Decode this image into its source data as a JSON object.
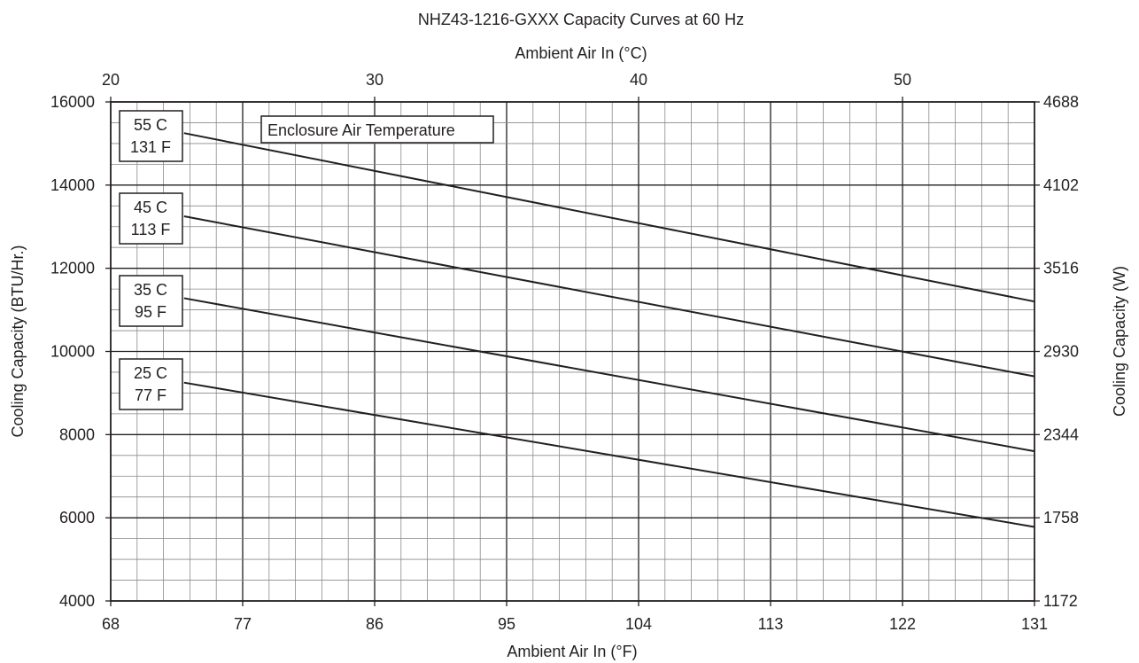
{
  "chart_data": {
    "type": "line",
    "title": "NHZ43-1216-GXXX Capacity Curves at 60 Hz",
    "xlabel": "Ambient Air In (°F)",
    "x2label": "Ambient Air In (°C)",
    "ylabel": "Cooling Capacity (BTU/Hr.)",
    "y2label": "Cooling Capacity (W)",
    "xlim": [
      68,
      131
    ],
    "ylim": [
      4000,
      16000
    ],
    "x2lim": [
      20,
      55
    ],
    "y2lim": [
      1172,
      4688
    ],
    "x_ticks": [
      "68",
      "77",
      "86",
      "95",
      "104",
      "113",
      "122",
      "131"
    ],
    "x2_ticks": [
      "20",
      "30",
      "40",
      "50"
    ],
    "y_ticks": [
      "4000",
      "6000",
      "8000",
      "10000",
      "12000",
      "14000",
      "16000"
    ],
    "y2_ticks": [
      "1172",
      "1758",
      "2344",
      "2930",
      "3516",
      "4102",
      "4688"
    ],
    "grid": true,
    "legend_title": "Enclosure Air Temperature",
    "series": [
      {
        "name": "55 C\n131 F",
        "label_c": "55 C",
        "label_f": "131 F",
        "x": [
          73,
          131
        ],
        "y": [
          15250,
          11200
        ]
      },
      {
        "name": "45 C\n113 F",
        "label_c": "45 C",
        "label_f": "113 F",
        "x": [
          73,
          131
        ],
        "y": [
          13250,
          9400
        ]
      },
      {
        "name": "35 C\n95 F",
        "label_c": "35 C",
        "label_f": "95 F",
        "x": [
          73,
          131
        ],
        "y": [
          11280,
          7600
        ]
      },
      {
        "name": "25 C\n77 F",
        "label_c": "25 C",
        "label_f": "77 F",
        "x": [
          73,
          131
        ],
        "y": [
          9250,
          5780
        ]
      }
    ]
  }
}
